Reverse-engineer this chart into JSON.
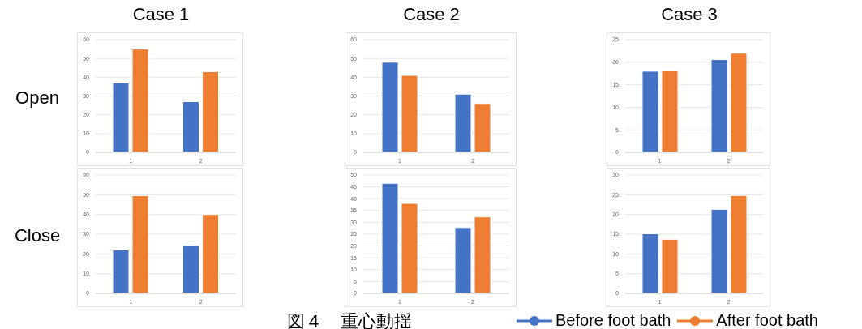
{
  "chart_data": [
    {
      "type": "bar",
      "title": "Case 1",
      "ylabel": "Open",
      "categories": [
        "1",
        "2"
      ],
      "series": [
        {
          "color": "#4472c4",
          "values": [
            37,
            27
          ]
        },
        {
          "color": "#ed7d31",
          "values": [
            55,
            43
          ]
        }
      ],
      "ylim": [
        0,
        60
      ],
      "yticks": [
        0,
        10,
        20,
        30,
        40,
        50,
        60
      ],
      "grid": "y"
    },
    {
      "type": "bar",
      "title": "Case 2",
      "categories": [
        "1",
        "2"
      ],
      "series": [
        {
          "color": "#4472c4",
          "values": [
            48,
            31
          ]
        },
        {
          "color": "#ed7d31",
          "values": [
            41,
            26
          ]
        }
      ],
      "ylim": [
        0,
        60
      ],
      "yticks": [
        0,
        10,
        20,
        30,
        40,
        50,
        60
      ],
      "grid": "y"
    },
    {
      "type": "bar",
      "title": "Case 3",
      "categories": [
        "1",
        "2"
      ],
      "series": [
        {
          "color": "#4472c4",
          "values": [
            18,
            20.6
          ]
        },
        {
          "color": "#ed7d31",
          "values": [
            18.1,
            22
          ]
        }
      ],
      "ylim": [
        0,
        25
      ],
      "yticks": [
        0,
        5,
        10,
        15,
        20,
        25
      ],
      "grid": "y"
    },
    {
      "type": "bar",
      "ylabel": "Close",
      "categories": [
        "1",
        "2"
      ],
      "series": [
        {
          "color": "#4472c4",
          "values": [
            22,
            24.2
          ]
        },
        {
          "color": "#ed7d31",
          "values": [
            49.5,
            40
          ]
        }
      ],
      "ylim": [
        0,
        60
      ],
      "yticks": [
        0,
        10,
        20,
        30,
        40,
        50,
        60
      ],
      "grid": "y"
    },
    {
      "type": "bar",
      "annotations": [
        "図４　重心動揺"
      ],
      "categories": [
        "1",
        "2"
      ],
      "series": [
        {
          "color": "#4472c4",
          "values": [
            46.5,
            27.8
          ]
        },
        {
          "color": "#ed7d31",
          "values": [
            38,
            32.3
          ]
        }
      ],
      "ylim": [
        0,
        50
      ],
      "yticks": [
        0,
        5,
        10,
        15,
        20,
        25,
        30,
        35,
        40,
        45,
        50
      ],
      "grid": "y"
    },
    {
      "type": "bar",
      "categories": [
        "1",
        "2"
      ],
      "series": [
        {
          "name": "Before foot bath",
          "color": "#4472c4",
          "values": [
            15.1,
            21.3
          ]
        },
        {
          "name": "After foot bath",
          "color": "#ed7d31",
          "values": [
            13.7,
            24.8
          ]
        }
      ],
      "ylim": [
        0,
        30
      ],
      "yticks": [
        0,
        5,
        10,
        15,
        20,
        25,
        30
      ],
      "grid": "y",
      "legend": "bottom"
    }
  ]
}
